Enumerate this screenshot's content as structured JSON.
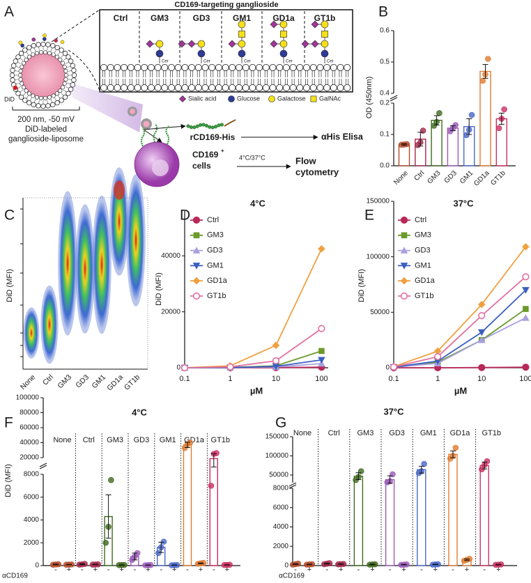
{
  "diagram": {
    "label": "A",
    "header": "CD169-targeting ganglioside",
    "columns": [
      "Ctrl",
      "GM3",
      "GD3",
      "GM1",
      "GD1a",
      "GT1b"
    ],
    "lipid_label": "Cer",
    "legend": [
      "Sialic acid",
      "Glucose",
      "Galactose",
      "GalNAc"
    ],
    "liposome": {
      "marker": "DiD",
      "size": "200 nm, -50 mV",
      "caption": [
        "DiD-labeled",
        "ganglioside-liposome"
      ]
    },
    "protein": "rCD169-His",
    "elisa": "αHis Elisa",
    "cells": "CD169",
    "cells_sup": "+",
    "cells_line2": "cells",
    "temperature": "4°C/37°C",
    "flow": [
      "Flow",
      "cytometry"
    ]
  },
  "chart_data": [
    {
      "type": "bar",
      "label": "B",
      "ylabel": "OD (450nm)",
      "categories": [
        "None",
        "Ctrl",
        "GM3",
        "GD3",
        "GM1",
        "GD1a",
        "GT1b"
      ],
      "colors": [
        "#b04a2a",
        "#a0284a",
        "#3f6a1f",
        "#9a5ab8",
        "#4a68c8",
        "#e07a30",
        "#c83060"
      ],
      "values": [
        0.068,
        0.085,
        0.145,
        0.12,
        0.125,
        0.47,
        0.15
      ],
      "errors": [
        0.002,
        0.022,
        0.015,
        0.008,
        0.025,
        0.022,
        0.018
      ],
      "points": [
        [
          0.067,
          0.068,
          0.069
        ],
        [
          0.066,
          0.075,
          0.112
        ],
        [
          0.128,
          0.14,
          0.168
        ],
        [
          0.11,
          0.12,
          0.13
        ],
        [
          0.098,
          0.115,
          0.162
        ],
        [
          0.44,
          0.46,
          0.51
        ],
        [
          0.12,
          0.15,
          0.18
        ]
      ],
      "ysegments": [
        {
          "ylim": [
            0,
            0.2
          ],
          "yticks": [
            {
              "value": 0,
              "label": "0.0"
            },
            0.1,
            0.2
          ]
        },
        {
          "ylim": [
            0.4,
            0.6
          ],
          "yticks": [
            0.4,
            0.5,
            0.6
          ]
        }
      ]
    },
    {
      "type": "density",
      "label": "C",
      "ylabel": "DiD (MFI)",
      "categories": [
        "None",
        "Ctrl",
        "GM3",
        "GD3",
        "GM1",
        "GD1a",
        "GT1b"
      ]
    },
    {
      "type": "line",
      "label": "D",
      "title": "4°C",
      "xlabel": "µM",
      "ylabel": "DiD (MFI)",
      "xscale": "log",
      "x": [
        0.1,
        1,
        10,
        100
      ],
      "xlim": [
        0.1,
        140
      ],
      "xticks": [
        0.1,
        1,
        10,
        100
      ],
      "ylim": [
        0,
        56000
      ],
      "yticks": [
        0,
        20000,
        40000
      ],
      "legend": "upper left",
      "series": [
        {
          "name": "Ctrl",
          "color": "#b8285a",
          "marker": "circle",
          "values": [
            0,
            0,
            50,
            200
          ]
        },
        {
          "name": "GM3",
          "color": "#6a9a2a",
          "marker": "square",
          "values": [
            0,
            100,
            700,
            6000
          ]
        },
        {
          "name": "GD3",
          "color": "#a8a0e0",
          "marker": "triangle-up",
          "values": [
            0,
            50,
            300,
            1500
          ]
        },
        {
          "name": "GM1",
          "color": "#3a5fc0",
          "marker": "triangle-down",
          "values": [
            0,
            80,
            500,
            2800
          ]
        },
        {
          "name": "GD1a",
          "color": "#f0a040",
          "marker": "diamond",
          "values": [
            0,
            700,
            8000,
            42500
          ]
        },
        {
          "name": "GT1b",
          "color": "#e070a0",
          "marker": "circle-open",
          "values": [
            0,
            300,
            2500,
            14000
          ]
        }
      ]
    },
    {
      "type": "line",
      "label": "E",
      "title": "37°C",
      "xlabel": "µM",
      "ylabel": "DiD (MFI)",
      "xscale": "log",
      "x": [
        0.1,
        1,
        10,
        100
      ],
      "xlim": [
        0.1,
        110
      ],
      "xticks": [
        0.1,
        1,
        10,
        100
      ],
      "ylim": [
        0,
        150000
      ],
      "yticks": [
        0,
        50000,
        100000,
        150000
      ],
      "legend": "upper left",
      "series": [
        {
          "name": "Ctrl",
          "color": "#b8285a",
          "marker": "circle",
          "values": [
            0,
            0,
            200,
            500
          ]
        },
        {
          "name": "GM3",
          "color": "#6a9a2a",
          "marker": "square",
          "values": [
            500,
            5000,
            25000,
            53000
          ]
        },
        {
          "name": "GD3",
          "color": "#a8a0e0",
          "marker": "triangle-up",
          "values": [
            500,
            4000,
            25000,
            45000
          ]
        },
        {
          "name": "GM1",
          "color": "#3a5fc0",
          "marker": "triangle-down",
          "values": [
            500,
            6000,
            32000,
            70000
          ]
        },
        {
          "name": "GD1a",
          "color": "#f0a040",
          "marker": "diamond",
          "values": [
            1000,
            15000,
            57000,
            109000
          ]
        },
        {
          "name": "GT1b",
          "color": "#e070a0",
          "marker": "circle-open",
          "values": [
            700,
            10000,
            47000,
            82000
          ]
        }
      ]
    },
    {
      "type": "grouped-bar",
      "label": "F",
      "title": "4°C",
      "ylabel": "DiD (MFI)",
      "condition_label": "αCD169",
      "categories": [
        "None",
        "Ctrl",
        "GM3",
        "GD3",
        "GM1",
        "GD1a",
        "GT1b"
      ],
      "colors": [
        "#b04a2a",
        "#a0284a",
        "#3f6a1f",
        "#9a5ab8",
        "#4a68c8",
        "#e07a30",
        "#c83060"
      ],
      "series": [
        {
          "name": "-",
          "values": [
            100,
            120,
            4300,
            800,
            1600,
            37000,
            19300
          ],
          "errors": [
            20,
            30,
            1900,
            300,
            450,
            3500,
            6000
          ],
          "points": [
            [
              80,
              100,
              120
            ],
            [
              90,
              110,
              150
            ],
            [
              2000,
              3400,
              7500
            ],
            [
              500,
              800,
              1100
            ],
            [
              1100,
              1600,
              2100
            ],
            [
              33000,
              38000,
              40000
            ],
            [
              7000,
              25000,
              26000
            ]
          ]
        },
        {
          "name": "+",
          "values": [
            90,
            100,
            50,
            40,
            40,
            200,
            60
          ],
          "errors": [
            10,
            10,
            10,
            10,
            10,
            40,
            10
          ],
          "points": [
            [
              80,
              90,
              100
            ],
            [
              90,
              100,
              110
            ],
            [
              40,
              50,
              60
            ],
            [
              30,
              40,
              50
            ],
            [
              30,
              40,
              50
            ],
            [
              160,
              200,
              240
            ],
            [
              50,
              60,
              70
            ]
          ]
        }
      ],
      "ysegments": [
        {
          "ylim": [
            0,
            8000
          ],
          "yticks": [
            0,
            2000,
            4000,
            6000,
            8000
          ]
        },
        {
          "ylim": [
            20000,
            100000
          ],
          "yticks": [
            20000,
            40000,
            60000,
            80000,
            100000
          ]
        }
      ]
    },
    {
      "type": "grouped-bar",
      "label": "G",
      "title": "37°C",
      "condition_label": "αCD169",
      "categories": [
        "None",
        "Ctrl",
        "GM3",
        "GD3",
        "GM1",
        "GD1a",
        "GT1b"
      ],
      "colors": [
        "#b04a2a",
        "#a0284a",
        "#3f6a1f",
        "#9a5ab8",
        "#4a68c8",
        "#e07a30",
        "#c83060"
      ],
      "series": [
        {
          "name": "-",
          "values": [
            150,
            200,
            47000,
            38000,
            64000,
            104000,
            75000
          ],
          "errors": [
            30,
            40,
            9000,
            10000,
            9000,
            9000,
            9000
          ],
          "points": [
            [
              100,
              150,
              200
            ],
            [
              150,
              200,
              250
            ],
            [
              37000,
              45000,
              60000
            ],
            [
              31000,
              34000,
              52000
            ],
            [
              55000,
              60000,
              79000
            ],
            [
              93000,
              100000,
              121000
            ],
            [
              65000,
              76000,
              86000
            ]
          ]
        },
        {
          "name": "+",
          "values": [
            120,
            150,
            120,
            100,
            120,
            600,
            100
          ],
          "errors": [
            20,
            20,
            20,
            20,
            20,
            80,
            20
          ],
          "points": [
            [
              100,
              120,
              140
            ],
            [
              130,
              150,
              170
            ],
            [
              100,
              120,
              140
            ],
            [
              80,
              100,
              120
            ],
            [
              100,
              120,
              140
            ],
            [
              500,
              600,
              700
            ],
            [
              80,
              100,
              120
            ]
          ]
        }
      ],
      "ysegments": [
        {
          "ylim": [
            0,
            8000
          ],
          "yticks": [
            0,
            2000,
            4000,
            6000,
            8000
          ]
        },
        {
          "ylim": [
            30000,
            150000
          ],
          "yticks": [
            50000,
            100000,
            150000
          ]
        }
      ]
    }
  ]
}
